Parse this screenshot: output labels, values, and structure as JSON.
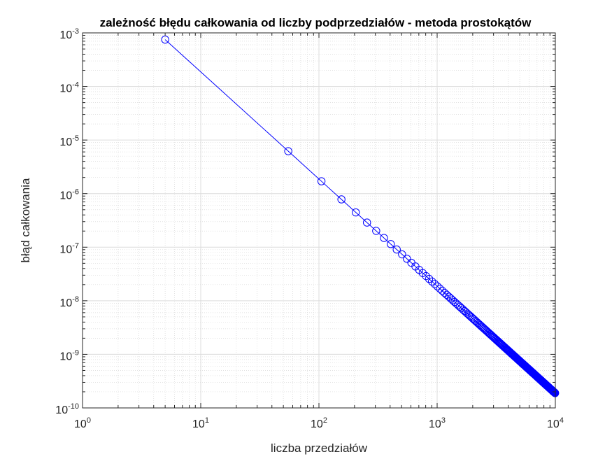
{
  "chart_data": {
    "type": "scatter",
    "title": "zależność błędu całkowania od liczby podprzedziałów - metoda prostokątów",
    "xlabel": "liczba przedziałów",
    "ylabel": "błąd całkowania",
    "xscale": "log",
    "yscale": "log",
    "xlim": [
      1,
      10000
    ],
    "ylim": [
      1e-10,
      0.001
    ],
    "grid": true,
    "minor_grid": true,
    "legend": "none",
    "x_ticks": [
      {
        "base": "10",
        "exp": "0"
      },
      {
        "base": "10",
        "exp": "1"
      },
      {
        "base": "10",
        "exp": "2"
      },
      {
        "base": "10",
        "exp": "3"
      },
      {
        "base": "10",
        "exp": "4"
      }
    ],
    "y_ticks": [
      {
        "base": "10",
        "exp": "-10"
      },
      {
        "base": "10",
        "exp": "-9"
      },
      {
        "base": "10",
        "exp": "-8"
      },
      {
        "base": "10",
        "exp": "-7"
      },
      {
        "base": "10",
        "exp": "-6"
      },
      {
        "base": "10",
        "exp": "-5"
      },
      {
        "base": "10",
        "exp": "-4"
      },
      {
        "base": "10",
        "exp": "-3"
      }
    ],
    "series": [
      {
        "marker": "circle",
        "line": true,
        "color": "#0000ff",
        "x_start": 5,
        "x_step": 50,
        "x_end": 9955,
        "y_at_first": 0.00075,
        "y_scaling": "proportional to 1/x^2"
      }
    ]
  }
}
